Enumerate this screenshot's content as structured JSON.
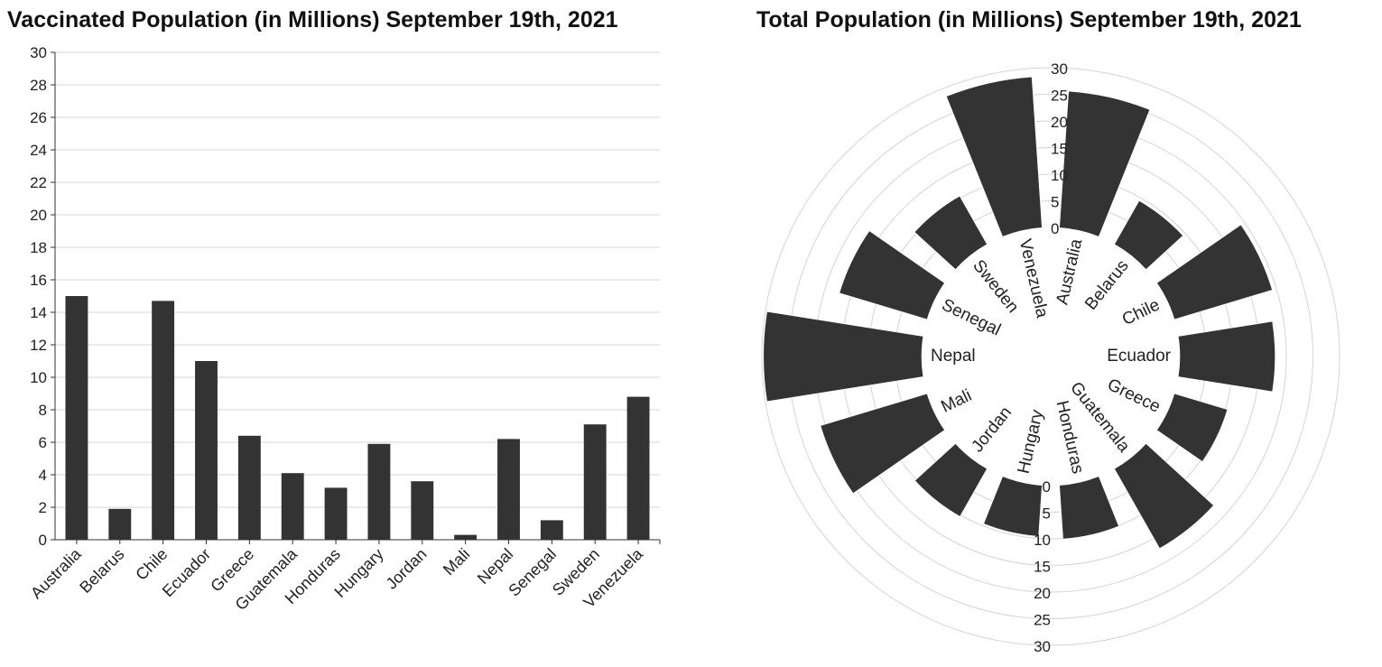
{
  "titles": {
    "bar": "Vaccinated Population (in Millions) September 19th, 2021",
    "radial": "Total Population (in Millions) September 19th, 2021"
  },
  "colors": {
    "bar": "#333333",
    "grid": "#d4d4d4"
  },
  "chart_data": [
    {
      "type": "bar",
      "title": "Vaccinated Population (in Millions) September 19th, 2021",
      "categories": [
        "Australia",
        "Belarus",
        "Chile",
        "Ecuador",
        "Greece",
        "Guatemala",
        "Honduras",
        "Hungary",
        "Jordan",
        "Mali",
        "Nepal",
        "Senegal",
        "Sweden",
        "Venezuela"
      ],
      "values": [
        15.0,
        1.9,
        14.7,
        11.0,
        6.4,
        4.1,
        3.2,
        5.9,
        3.6,
        0.3,
        6.2,
        1.2,
        7.1,
        8.8
      ],
      "ylim": [
        0,
        30
      ],
      "yticks": [
        0,
        2,
        4,
        6,
        8,
        10,
        12,
        14,
        16,
        18,
        20,
        22,
        24,
        26,
        28,
        30
      ],
      "grid": true
    },
    {
      "type": "radial-bar",
      "title": "Total Population (in Millions) September 19th, 2021",
      "categories": [
        "Australia",
        "Belarus",
        "Chile",
        "Ecuador",
        "Greece",
        "Guatemala",
        "Honduras",
        "Hungary",
        "Jordan",
        "Mali",
        "Nepal",
        "Senegal",
        "Sweden",
        "Venezuela"
      ],
      "values": [
        25.7,
        9.4,
        19.2,
        17.9,
        10.4,
        17.2,
        10.1,
        9.6,
        10.3,
        20.9,
        29.7,
        17.2,
        10.4,
        28.4
      ],
      "rlim": [
        0,
        30
      ],
      "rticks": [
        0,
        5,
        10,
        15,
        20,
        25,
        30
      ],
      "grid": true
    }
  ]
}
